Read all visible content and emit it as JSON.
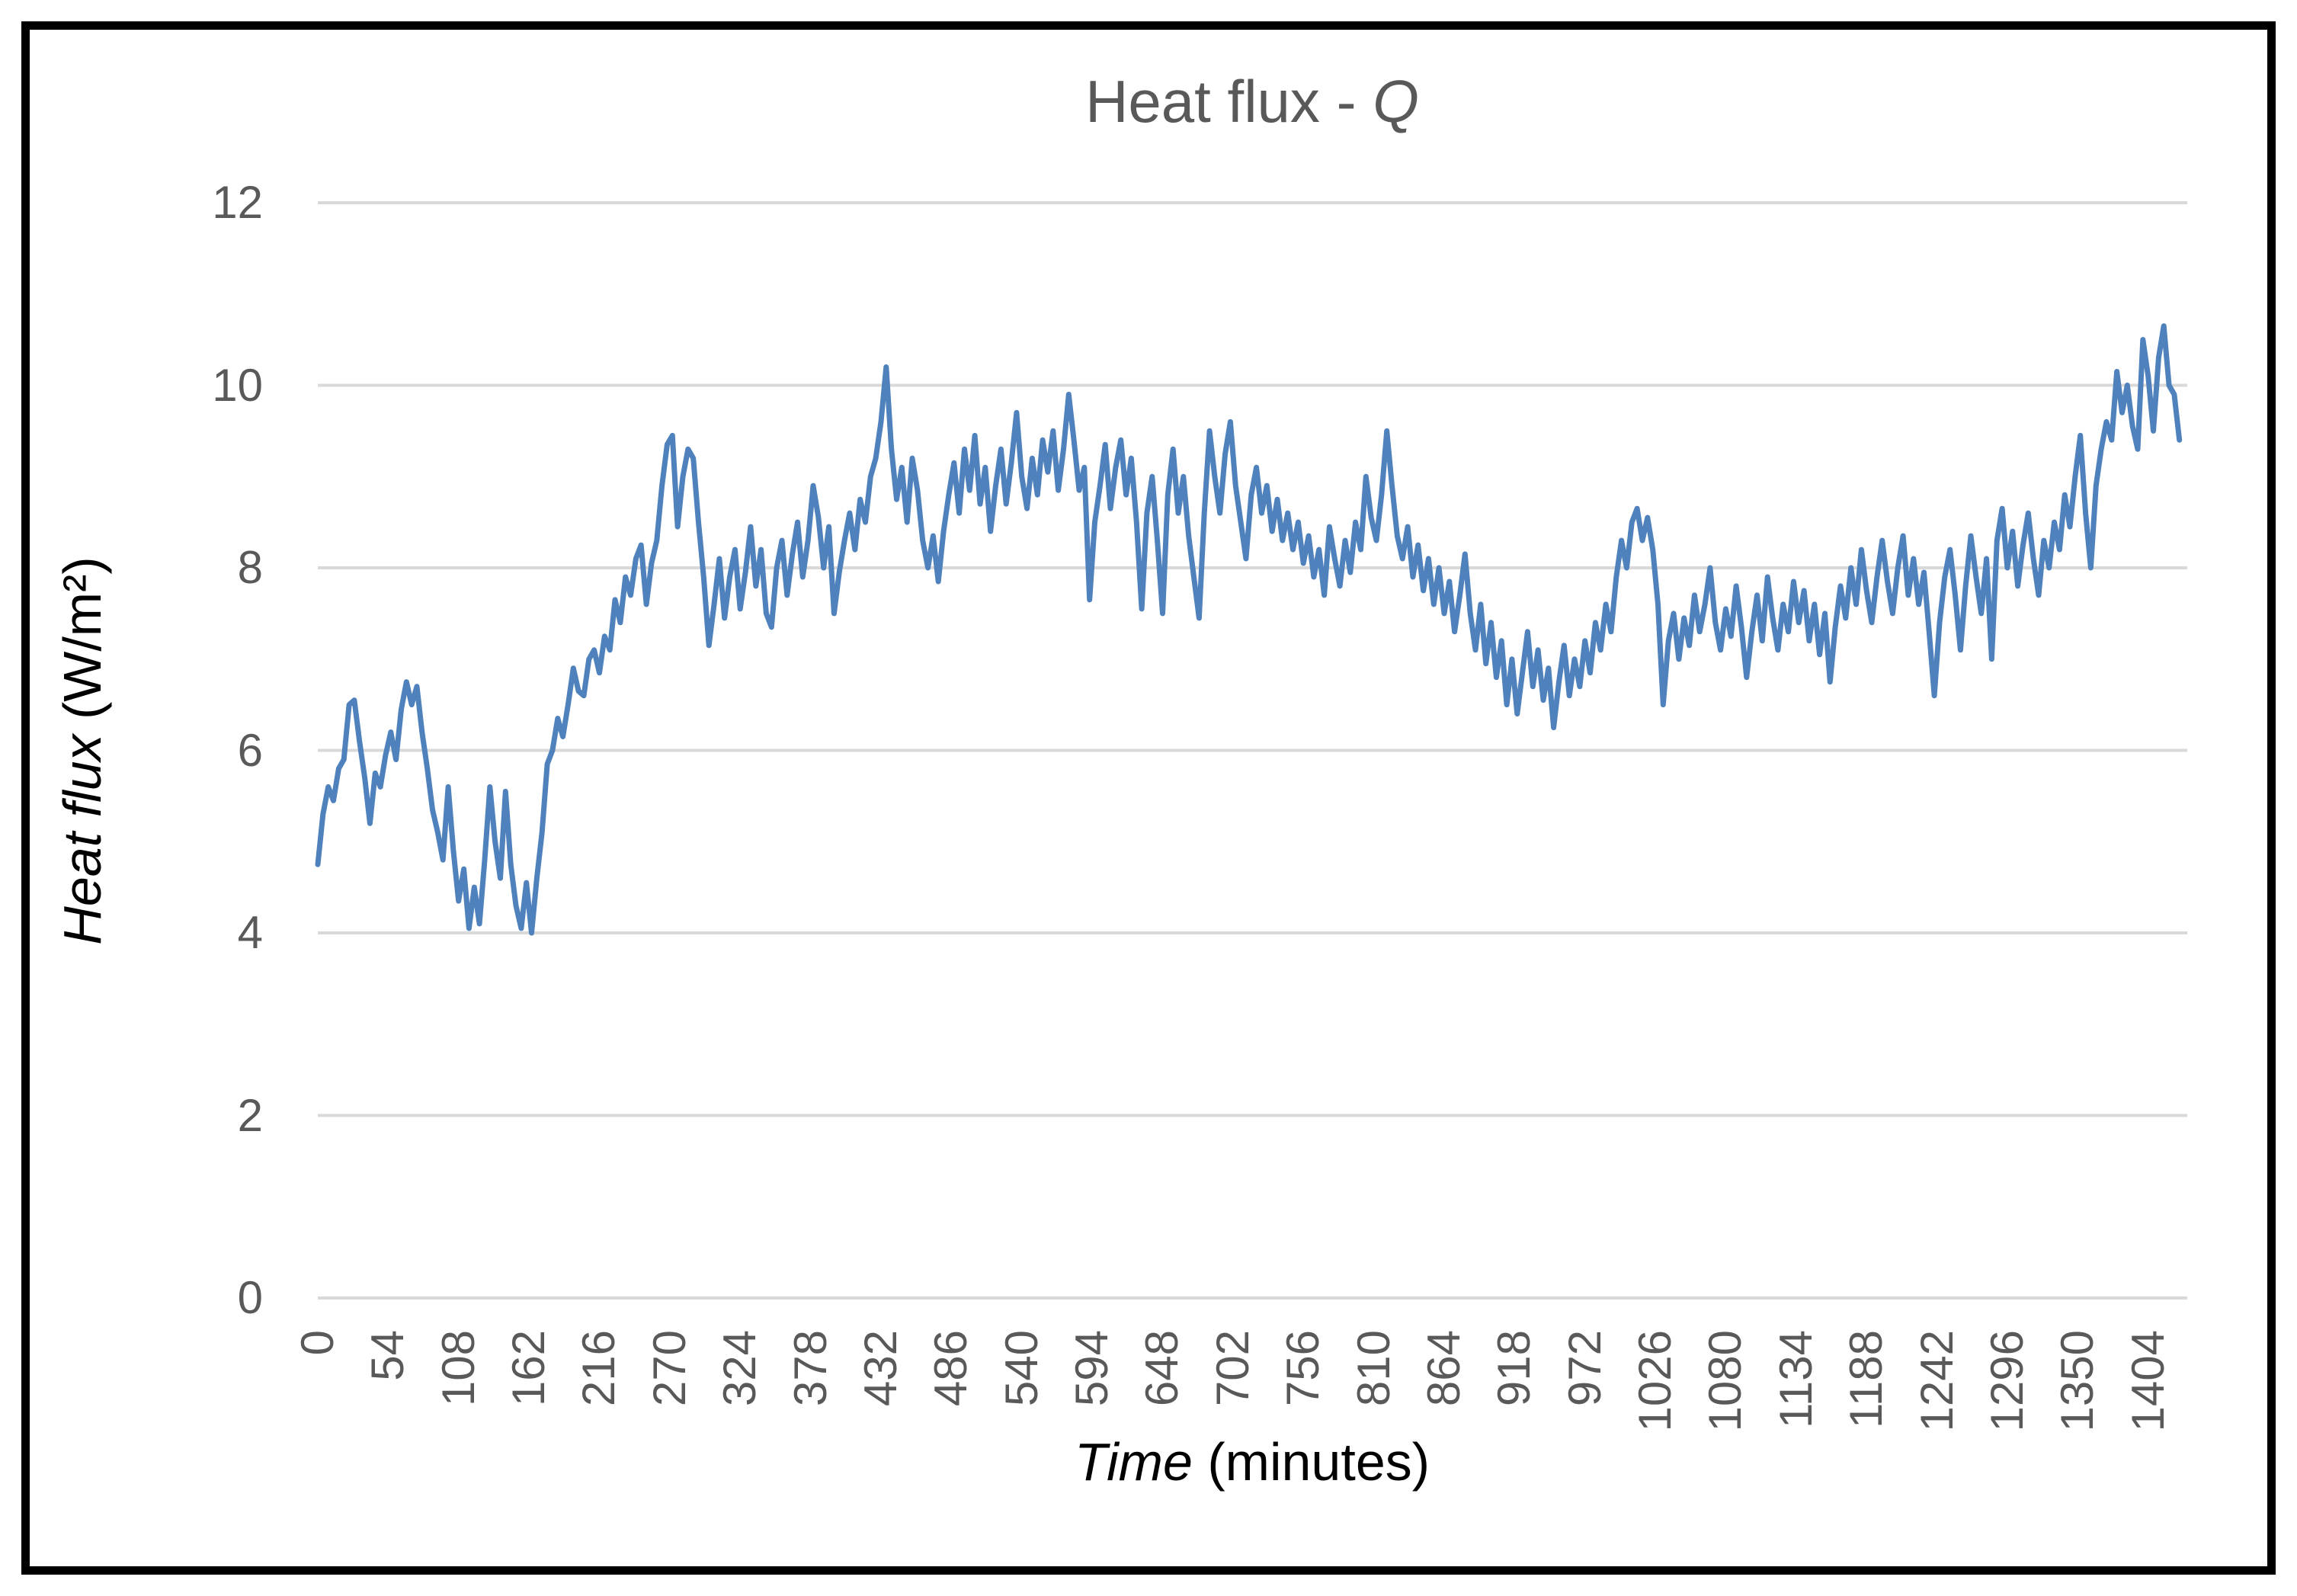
{
  "figure": {
    "title": {
      "prefix": "Heat flux - ",
      "emphasis": "Q"
    },
    "y_axis": {
      "label_italic": "Heat flux",
      "label_rest": " (W/m²)"
    },
    "x_axis": {
      "label_italic": "Time",
      "label_rest": " (minutes)"
    },
    "colors": {
      "series_line": "#4F81BD",
      "gridline": "#D9D9D9",
      "tick_text": "#595959",
      "title_text": "#595959",
      "axis_title_text": "#000000",
      "border": "#000000",
      "background": "#FFFFFF"
    }
  },
  "chart_data": {
    "type": "line",
    "title": "Heat flux - Q",
    "xlabel": "Time (minutes)",
    "ylabel": "Heat flux (W/m²)",
    "legend": "none",
    "grid": "horizontal",
    "xlim": [
      0,
      1434
    ],
    "ylim": [
      0,
      12
    ],
    "y_ticks": [
      12,
      10,
      8,
      6,
      4,
      2,
      0
    ],
    "x_ticks": [
      0,
      54,
      108,
      162,
      216,
      270,
      324,
      378,
      432,
      486,
      540,
      594,
      648,
      702,
      756,
      810,
      864,
      918,
      972,
      1026,
      1080,
      1134,
      1188,
      1242,
      1296,
      1350,
      1404
    ],
    "x_start": 0,
    "x_step_minutes": 4,
    "series": [
      {
        "name": "Q",
        "color": "#4F81BD",
        "values": [
          4.75,
          5.3,
          5.6,
          5.45,
          5.8,
          5.9,
          6.5,
          6.55,
          6.1,
          5.7,
          5.2,
          5.75,
          5.6,
          5.95,
          6.2,
          5.9,
          6.45,
          6.75,
          6.5,
          6.7,
          6.2,
          5.8,
          5.35,
          5.1,
          4.8,
          5.6,
          4.9,
          4.35,
          4.7,
          4.05,
          4.5,
          4.1,
          4.8,
          5.6,
          5.0,
          4.6,
          5.55,
          4.75,
          4.3,
          4.05,
          4.55,
          4.0,
          4.6,
          5.1,
          5.85,
          6.0,
          6.35,
          6.15,
          6.5,
          6.9,
          6.65,
          6.6,
          7.0,
          7.1,
          6.85,
          7.25,
          7.1,
          7.65,
          7.4,
          7.9,
          7.7,
          8.1,
          8.25,
          7.6,
          8.05,
          8.3,
          8.9,
          9.35,
          9.45,
          8.45,
          9.0,
          9.3,
          9.2,
          8.5,
          7.9,
          7.15,
          7.6,
          8.1,
          7.45,
          7.9,
          8.2,
          7.55,
          7.95,
          8.45,
          7.8,
          8.2,
          7.5,
          7.35,
          8.0,
          8.3,
          7.7,
          8.15,
          8.5,
          7.9,
          8.3,
          8.9,
          8.55,
          8.0,
          8.45,
          7.5,
          7.95,
          8.3,
          8.6,
          8.2,
          8.75,
          8.5,
          9.0,
          9.2,
          9.6,
          10.2,
          9.3,
          8.75,
          9.1,
          8.5,
          9.2,
          8.85,
          8.3,
          8.0,
          8.35,
          7.85,
          8.4,
          8.8,
          9.15,
          8.6,
          9.3,
          8.85,
          9.45,
          8.7,
          9.1,
          8.4,
          8.9,
          9.3,
          8.7,
          9.15,
          9.7,
          9.0,
          8.65,
          9.2,
          8.8,
          9.4,
          9.05,
          9.5,
          8.85,
          9.3,
          9.9,
          9.4,
          8.85,
          9.1,
          7.65,
          8.5,
          8.9,
          9.35,
          8.65,
          9.1,
          9.4,
          8.8,
          9.2,
          8.5,
          7.55,
          8.6,
          9.0,
          8.3,
          7.5,
          8.8,
          9.3,
          8.6,
          9.0,
          8.35,
          7.9,
          7.45,
          8.6,
          9.5,
          9.0,
          8.6,
          9.25,
          9.6,
          8.9,
          8.5,
          8.1,
          8.8,
          9.1,
          8.6,
          8.9,
          8.4,
          8.75,
          8.3,
          8.6,
          8.2,
          8.5,
          8.05,
          8.35,
          7.9,
          8.2,
          7.7,
          8.45,
          8.1,
          7.8,
          8.3,
          7.95,
          8.5,
          8.2,
          9.0,
          8.55,
          8.3,
          8.8,
          9.5,
          8.9,
          8.35,
          8.1,
          8.45,
          7.9,
          8.25,
          7.75,
          8.1,
          7.6,
          8.0,
          7.5,
          7.85,
          7.3,
          7.7,
          8.15,
          7.5,
          7.1,
          7.6,
          6.95,
          7.4,
          6.8,
          7.2,
          6.5,
          7.0,
          6.4,
          6.85,
          7.3,
          6.7,
          7.1,
          6.55,
          6.9,
          6.25,
          6.75,
          7.15,
          6.6,
          7.0,
          6.7,
          7.2,
          6.85,
          7.4,
          7.1,
          7.6,
          7.3,
          7.9,
          8.3,
          8.0,
          8.5,
          8.65,
          8.3,
          8.55,
          8.2,
          7.6,
          6.5,
          7.2,
          7.5,
          7.0,
          7.45,
          7.15,
          7.7,
          7.3,
          7.6,
          8.0,
          7.4,
          7.1,
          7.55,
          7.25,
          7.8,
          7.35,
          6.8,
          7.3,
          7.7,
          7.2,
          7.9,
          7.45,
          7.1,
          7.6,
          7.3,
          7.85,
          7.4,
          7.75,
          7.2,
          7.6,
          7.05,
          7.5,
          6.75,
          7.35,
          7.8,
          7.45,
          8.0,
          7.6,
          8.2,
          7.75,
          7.4,
          7.9,
          8.3,
          7.85,
          7.5,
          8.0,
          8.35,
          7.7,
          8.1,
          7.6,
          7.95,
          7.3,
          6.6,
          7.4,
          7.9,
          8.2,
          7.7,
          7.1,
          7.8,
          8.35,
          7.9,
          7.5,
          8.1,
          7.0,
          8.3,
          8.65,
          8.0,
          8.4,
          7.8,
          8.25,
          8.6,
          8.1,
          7.7,
          8.3,
          8.0,
          8.5,
          8.2,
          8.8,
          8.45,
          9.0,
          9.45,
          8.6,
          8.0,
          8.9,
          9.3,
          9.6,
          9.4,
          10.15,
          9.7,
          10.0,
          9.55,
          9.3,
          10.5,
          10.1,
          9.5,
          10.3,
          10.65,
          10.0,
          9.9,
          9.4
        ]
      }
    ]
  }
}
